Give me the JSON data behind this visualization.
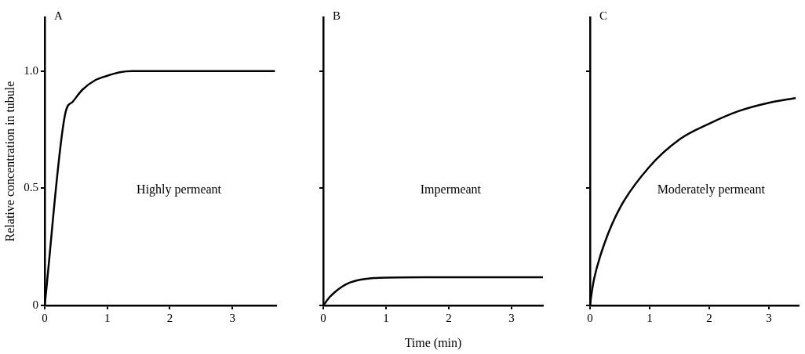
{
  "chart_data": [
    {
      "type": "line",
      "title": "A",
      "ylabel": "Relative concentration in tubule",
      "annotations": [
        "Highly permeant"
      ],
      "x": [
        0,
        0.33,
        0.45,
        0.6,
        0.8,
        1.0,
        1.2,
        1.4,
        2.0,
        3.0,
        3.68
      ],
      "series": [
        {
          "color": "#000000",
          "values": [
            0,
            0.82,
            0.87,
            0.92,
            0.96,
            0.98,
            0.995,
            1.0,
            1.0,
            1.0,
            1.0
          ]
        }
      ],
      "xlim": [
        0,
        3.7
      ],
      "ylim": [
        0,
        1.23
      ],
      "xticks": [
        0,
        1,
        2,
        3
      ],
      "yticks": [
        0,
        {
          "value": 0.5,
          "label": "0.5"
        },
        {
          "value": 1,
          "label": "1.0"
        }
      ],
      "grid": false,
      "legend": false,
      "marker": "none",
      "line_style": "solid"
    },
    {
      "type": "line",
      "title": "B",
      "xlabel": "Time (min)",
      "annotations": [
        "Impermeant"
      ],
      "x": [
        0,
        0.1,
        0.2,
        0.3,
        0.4,
        0.6,
        0.8,
        1.0,
        2.0,
        3.0,
        3.5
      ],
      "series": [
        {
          "color": "#000000",
          "values": [
            0,
            0.035,
            0.06,
            0.08,
            0.095,
            0.11,
            0.117,
            0.119,
            0.12,
            0.12,
            0.12
          ]
        }
      ],
      "xlim": [
        0,
        3.5
      ],
      "ylim": [
        0,
        1.23
      ],
      "xticks": [
        0,
        1,
        2,
        3
      ],
      "yticks": [
        0,
        0.5,
        1
      ],
      "tick_labels": "x",
      "grid": false,
      "legend": false,
      "marker": "none",
      "line_style": "solid"
    },
    {
      "type": "line",
      "title": "C",
      "annotations": [
        "Moderately permeant"
      ],
      "x": [
        0,
        0.02,
        0.07,
        0.25,
        0.51,
        0.99,
        1.51,
        2.0,
        2.5,
        3.0,
        3.45
      ],
      "series": [
        {
          "color": "#000000",
          "values": [
            0,
            0.04,
            0.115,
            0.27,
            0.42,
            0.59,
            0.71,
            0.776,
            0.83,
            0.865,
            0.885
          ]
        }
      ],
      "xlim": [
        0,
        3.5
      ],
      "ylim": [
        0,
        1.23
      ],
      "xticks": [
        0,
        1,
        2,
        3
      ],
      "yticks": [
        0,
        0.5,
        1
      ],
      "tick_labels": "x",
      "grid": false,
      "legend": false,
      "marker": "none",
      "line_style": "solid"
    }
  ]
}
